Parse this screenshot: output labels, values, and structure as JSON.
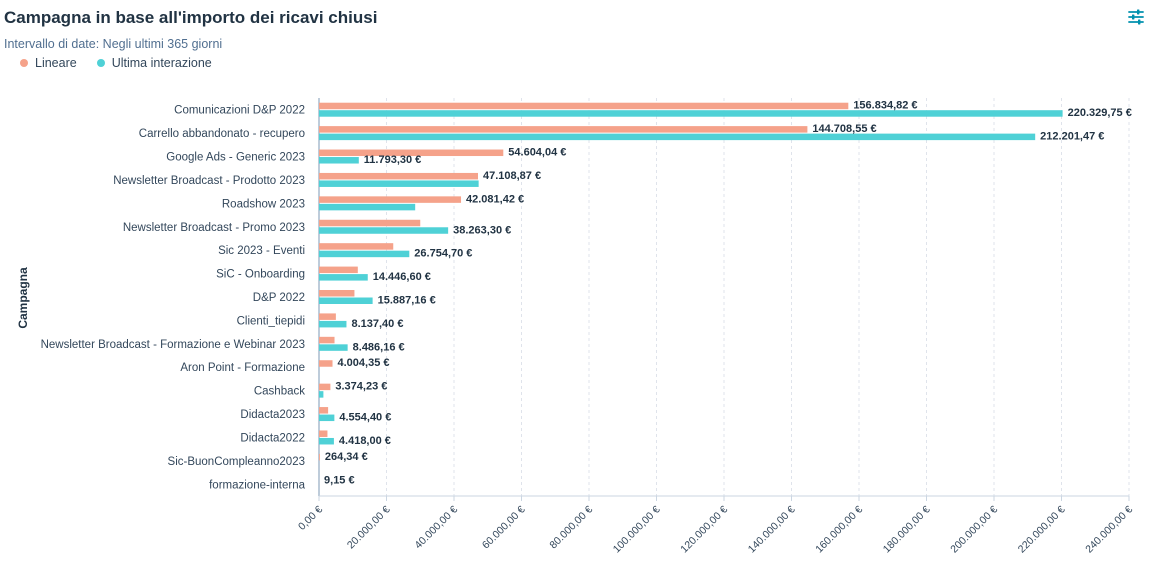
{
  "header": {
    "title": "Campagna in base all'importo dei ricavi chiusi",
    "subtitle": "Intervallo di date: Negli ultimi 365 giorni",
    "filter_icon": "sliders-icon"
  },
  "chart_data": {
    "type": "bar",
    "orientation": "horizontal",
    "ylabel": "Campagna",
    "xlim": [
      0,
      240000
    ],
    "grid": true,
    "legend_position": "top-left",
    "x_ticks": [
      0,
      20000,
      40000,
      60000,
      80000,
      100000,
      120000,
      140000,
      160000,
      180000,
      200000,
      220000,
      240000
    ],
    "x_tick_labels": [
      "0,00 €",
      "20.000,00 €",
      "40.000,00 €",
      "60.000,00 €",
      "80.000,00 €",
      "100.000,00 €",
      "120.000,00 €",
      "140.000,00 €",
      "160.000,00 €",
      "180.000,00 €",
      "200.000,00 €",
      "220.000,00 €",
      "240.000,00 €"
    ],
    "categories": [
      "Comunicazioni D&P 2022",
      "Carrello abbandonato - recupero",
      "Google Ads - Generic 2023",
      "Newsletter Broadcast - Prodotto 2023",
      "Roadshow 2023",
      "Newsletter Broadcast - Promo 2023",
      "Sic 2023 - Eventi",
      "SiC - Onboarding",
      "D&P 2022",
      "Clienti_tiepidi",
      "Newsletter Broadcast - Formazione e Webinar 2023",
      "Aron Point - Formazione",
      "Cashback",
      "Didacta2023",
      "Didacta2022",
      "Sic-BuonCompleanno2023",
      "formazione-interna"
    ],
    "series": [
      {
        "name": "Lineare",
        "color": "#f5a28a",
        "values": [
          156834.82,
          144708.55,
          54604.04,
          47108.87,
          42081.42,
          30000,
          22000,
          11500,
          10500,
          5000,
          4600,
          4004.35,
          3374.23,
          2700,
          2500,
          264.34,
          9.15
        ],
        "labels": [
          "156.834,82 €",
          "144.708,55 €",
          "54.604,04 €",
          "47.108,87 €",
          "42.081,42 €",
          "",
          "",
          "",
          "",
          "",
          "",
          "4.004,35 €",
          "3.374,23 €",
          "",
          "",
          "264,34 €",
          "9,15 €"
        ]
      },
      {
        "name": "Ultima interazione",
        "color": "#4fd1d6",
        "values": [
          220329.75,
          212201.47,
          11793.3,
          47300,
          28500,
          38263.3,
          26754.7,
          14446.6,
          15887.16,
          8137.4,
          8486.16,
          0,
          1300,
          4554.4,
          4418.0,
          0,
          0
        ],
        "labels": [
          "220.329,75 €",
          "212.201,47 €",
          "11.793,30 €",
          "",
          "",
          "38.263,30 €",
          "26.754,70 €",
          "14.446,60 €",
          "15.887,16 €",
          "8.137,40 €",
          "8.486,16 €",
          "",
          "",
          "4.554,40 €",
          "4.418,00 €",
          "",
          ""
        ]
      }
    ]
  }
}
